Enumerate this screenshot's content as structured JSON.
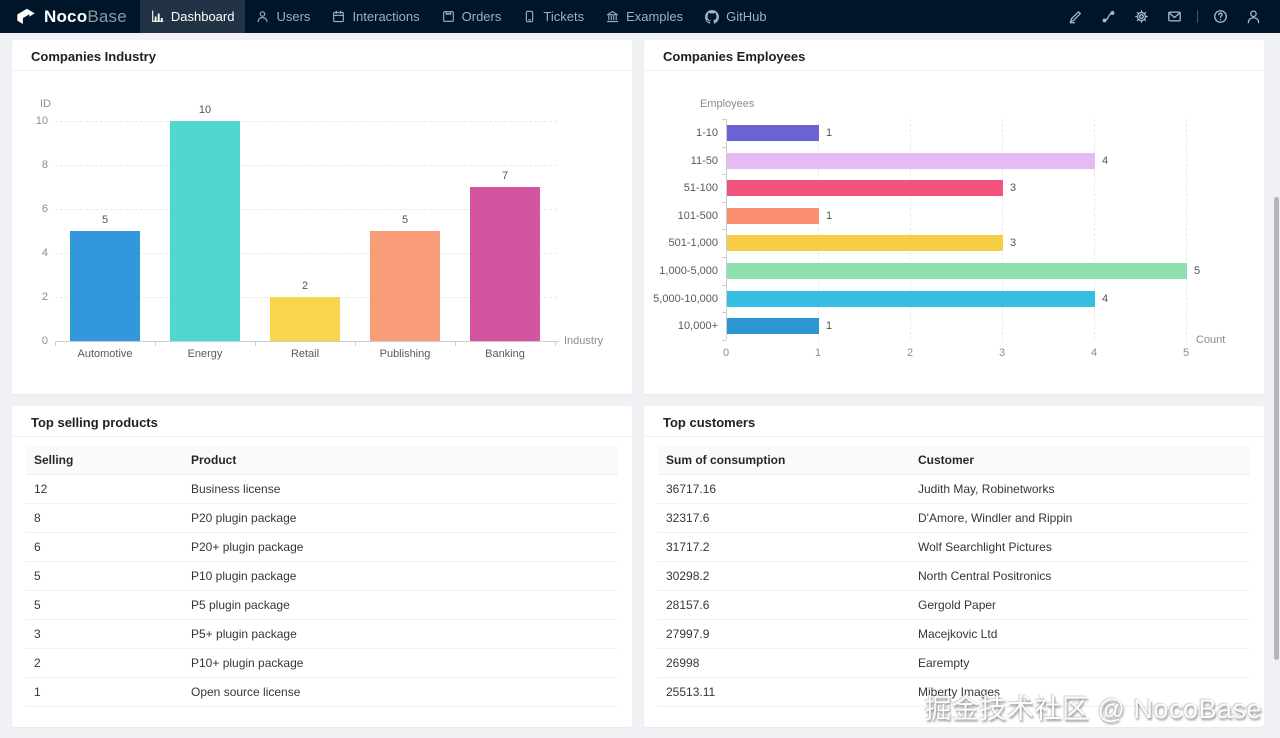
{
  "theme": {
    "nav_bg": "#001529",
    "page_bg": "#f0f1f4",
    "panel_bg": "#ffffff"
  },
  "nav": {
    "logo": {
      "brand_bold": "Noco",
      "brand_light": "Base"
    },
    "items": [
      {
        "label": "Dashboard",
        "icon": "bar-chart-icon",
        "active": true
      },
      {
        "label": "Users",
        "icon": "user-icon",
        "active": false
      },
      {
        "label": "Interactions",
        "icon": "calendar-icon",
        "active": false
      },
      {
        "label": "Orders",
        "icon": "box-icon",
        "active": false
      },
      {
        "label": "Tickets",
        "icon": "ticket-icon",
        "active": false
      },
      {
        "label": "Examples",
        "icon": "bank-icon",
        "active": false
      },
      {
        "label": "GitHub",
        "icon": "github-icon",
        "active": false
      }
    ],
    "right_icons": [
      {
        "name": "highlighter-icon"
      },
      {
        "name": "api-icon"
      },
      {
        "name": "gear-icon"
      },
      {
        "name": "mail-icon"
      },
      {
        "name": "divider"
      },
      {
        "name": "help-icon"
      },
      {
        "name": "account-icon"
      }
    ]
  },
  "panels": {
    "industry": {
      "title": "Companies Industry"
    },
    "employees": {
      "title": "Companies Employees"
    },
    "products": {
      "title": "Top selling products",
      "columns": [
        "Selling",
        "Product"
      ],
      "rows": [
        [
          "12",
          "Business license"
        ],
        [
          "8",
          "P20 plugin package"
        ],
        [
          "6",
          "P20+ plugin package"
        ],
        [
          "5",
          "P10 plugin package"
        ],
        [
          "5",
          "P5 plugin package"
        ],
        [
          "3",
          "P5+ plugin package"
        ],
        [
          "2",
          "P10+ plugin package"
        ],
        [
          "1",
          "Open source license"
        ]
      ]
    },
    "customers": {
      "title": "Top customers",
      "columns": [
        "Sum of consumption",
        "Customer"
      ],
      "rows": [
        [
          "36717.16",
          "Judith May, Robinetworks"
        ],
        [
          "32317.6",
          "D'Amore, Windler and Rippin"
        ],
        [
          "31717.2",
          "Wolf Searchlight Pictures"
        ],
        [
          "30298.2",
          "North Central Positronics"
        ],
        [
          "28157.6",
          "Gergold Paper"
        ],
        [
          "27997.9",
          "Macejkovic Ltd"
        ],
        [
          "26998",
          "Earempty"
        ],
        [
          "25513.11",
          "Miberty Images"
        ]
      ]
    }
  },
  "chart_data": [
    {
      "type": "bar",
      "orientation": "vertical",
      "title": "Companies Industry",
      "categories": [
        "Automotive",
        "Energy",
        "Retail",
        "Publishing",
        "Banking"
      ],
      "values": [
        5,
        10,
        2,
        5,
        7
      ],
      "colors": [
        "#3398db",
        "#50d7d2",
        "#f9d54e",
        "#f99d78",
        "#d4549f"
      ],
      "xlabel": "Industry",
      "ylabel": "ID",
      "ylim": [
        0,
        10
      ],
      "yticks": [
        0,
        2,
        4,
        6,
        8,
        10
      ],
      "grid": true,
      "value_labels": true,
      "legend": "none"
    },
    {
      "type": "bar",
      "orientation": "horizontal",
      "title": "Companies Employees",
      "categories": [
        "1-10",
        "11-50",
        "51-100",
        "101-500",
        "501-1,000",
        "1,000-5,000",
        "5,000-10,000",
        "10,000+"
      ],
      "values": [
        1,
        4,
        3,
        1,
        3,
        5,
        4,
        1
      ],
      "colors": [
        "#6c63d2",
        "#e4bbf2",
        "#f1537c",
        "#f98e70",
        "#f7cd46",
        "#8ee0af",
        "#36bee2",
        "#2f95d3"
      ],
      "xlabel": "Count",
      "ylabel": "Employees",
      "xlim": [
        0,
        5
      ],
      "xticks": [
        0,
        1,
        2,
        3,
        4,
        5
      ],
      "grid": true,
      "value_labels": true,
      "legend": "none"
    }
  ],
  "watermark": "掘金技术社区 @ NocoBase"
}
